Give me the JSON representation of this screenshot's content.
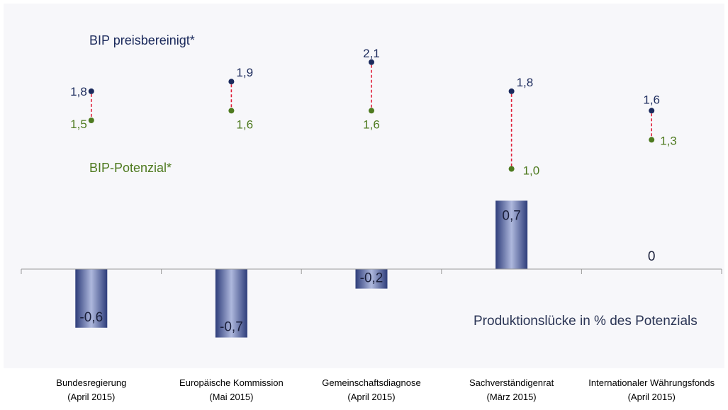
{
  "chart_data": {
    "type": "bar",
    "categories": [
      [
        "Bundesregierung",
        "(April 2015)"
      ],
      [
        "Europäische Kommission",
        "(Mai 2015)"
      ],
      [
        "Gemeinschaftsdiagnose",
        "(April 2015)"
      ],
      [
        "Sachverständigenrat",
        "(März 2015)"
      ],
      [
        "Internationaler Währungsfonds",
        "(April 2015)"
      ]
    ],
    "bars": {
      "values": [
        -0.6,
        -0.7,
        -0.2,
        0.7,
        0
      ],
      "labels": [
        "-0,6",
        "-0,7",
        "-0,2",
        "0,7",
        "0"
      ]
    },
    "dots": [
      {
        "name": "BIP preisbereinigt*",
        "values": [
          1.8,
          1.9,
          2.1,
          1.8,
          1.6
        ],
        "labels": [
          "1,8",
          "1,9",
          "2,1",
          "1,8",
          "1,6"
        ]
      },
      {
        "name": "BIP-Potenzial*",
        "values": [
          1.5,
          1.6,
          1.6,
          1.0,
          1.3
        ],
        "labels": [
          "1,5",
          "1,6",
          "1,6",
          "1,0",
          "1,3"
        ]
      }
    ],
    "annotation": "Produktionslücke in % des Potenzials",
    "colors": {
      "bar_dark": "#2e3d7a",
      "bar_light": "#aeb8dd",
      "dot_top": "#1b2a5c",
      "dot_bottom": "#4e7a1f",
      "connector": "#e0203a"
    },
    "grid": false
  }
}
